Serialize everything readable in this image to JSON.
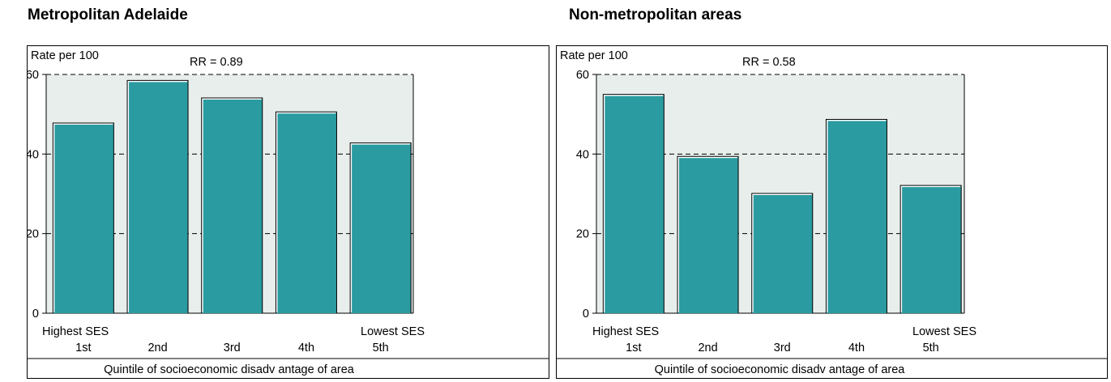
{
  "chart_data": [
    {
      "type": "bar",
      "title": "Metropolitan Adelaide",
      "ylabel": "Rate per 100",
      "xlabel": "Quintile of socioeconomic disadv antage of area",
      "annotation": "RR = 0.89",
      "categories": [
        "1st",
        "2nd",
        "3rd",
        "4th",
        "5th"
      ],
      "values": [
        47.8,
        58.5,
        54.1,
        50.6,
        42.8
      ],
      "ylim": [
        0,
        60
      ],
      "yticks": [
        "0",
        "20",
        "40",
        "60"
      ],
      "grid": "dashed horizontal",
      "end_labels": {
        "left": "Highest SES",
        "right": "Lowest SES"
      },
      "colors": {
        "bar": "#2a9ba0",
        "plot_bg": "#e7eeec"
      }
    },
    {
      "type": "bar",
      "title": "Non-metropolitan areas",
      "ylabel": "Rate per 100",
      "xlabel": "Quintile of socioeconomic disadv antage of area",
      "annotation": "RR = 0.58",
      "categories": [
        "1st",
        "2nd",
        "3rd",
        "4th",
        "5th"
      ],
      "values": [
        55.0,
        39.4,
        30.1,
        48.7,
        32.1
      ],
      "ylim": [
        0,
        60
      ],
      "yticks": [
        "0",
        "20",
        "40",
        "60"
      ],
      "grid": "dashed horizontal",
      "end_labels": {
        "left": "Highest SES",
        "right": "Lowest SES"
      },
      "colors": {
        "bar": "#2a9ba0",
        "plot_bg": "#e7eeec"
      }
    }
  ]
}
